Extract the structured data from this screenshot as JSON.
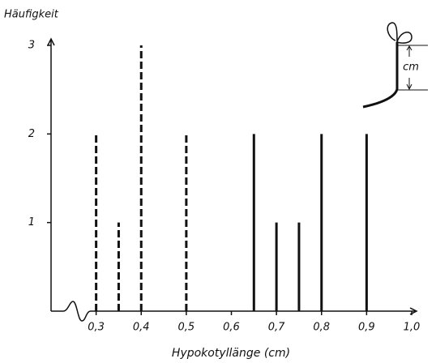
{
  "chart_data": {
    "type": "bar",
    "y_label": "Häufigkeit",
    "x_label": "Hypokotyllänge (cm)",
    "annotation": "cm",
    "series": [
      {
        "color": "#111111",
        "line_style": "dashed",
        "x": [
          0.3,
          0.35,
          0.4,
          0.5
        ],
        "values": [
          2,
          1,
          3,
          2
        ]
      },
      {
        "color": "#111111",
        "line_style": "solid",
        "x": [
          0.65,
          0.7,
          0.75,
          0.8,
          0.9
        ],
        "values": [
          2,
          1,
          1,
          2,
          2
        ]
      }
    ],
    "xlim": [
      0.2,
      1.0
    ],
    "xticks": [
      {
        "value": 0.3,
        "label": "0,3"
      },
      {
        "value": 0.4,
        "label": "0,4"
      },
      {
        "value": 0.5,
        "label": "0,5"
      },
      {
        "value": 0.6,
        "label": "0,6"
      },
      {
        "value": 0.7,
        "label": "0,7"
      },
      {
        "value": 0.8,
        "label": "0,8"
      },
      {
        "value": 0.9,
        "label": "0,9"
      },
      {
        "value": 1.0,
        "label": "1,0"
      }
    ],
    "ylim": [
      0,
      3
    ],
    "yticks": [
      1,
      2,
      3
    ],
    "grid": false
  }
}
